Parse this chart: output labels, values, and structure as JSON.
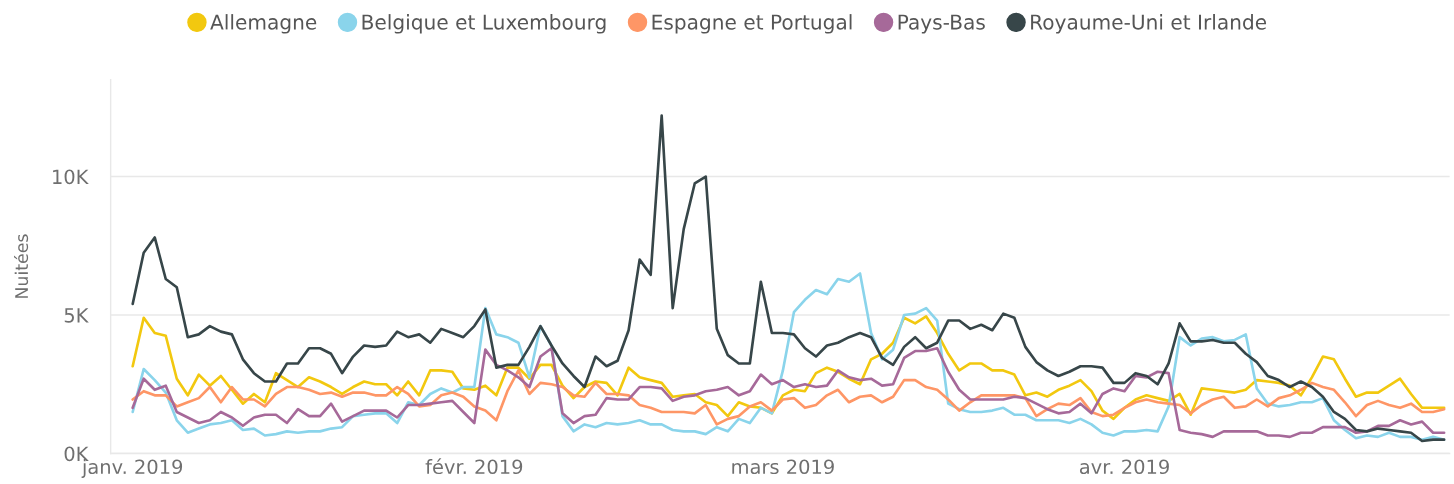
{
  "chart_data": {
    "type": "line",
    "ylabel": "Nuitées",
    "x": [
      "2019-01-01",
      "2019-01-02",
      "2019-01-03",
      "2019-01-04",
      "2019-01-05",
      "2019-01-06",
      "2019-01-07",
      "2019-01-08",
      "2019-01-09",
      "2019-01-10",
      "2019-01-11",
      "2019-01-12",
      "2019-01-13",
      "2019-01-14",
      "2019-01-15",
      "2019-01-16",
      "2019-01-17",
      "2019-01-18",
      "2019-01-19",
      "2019-01-20",
      "2019-01-21",
      "2019-01-22",
      "2019-01-23",
      "2019-01-24",
      "2019-01-25",
      "2019-01-26",
      "2019-01-27",
      "2019-01-28",
      "2019-01-29",
      "2019-01-30",
      "2019-01-31",
      "2019-02-01",
      "2019-02-02",
      "2019-02-03",
      "2019-02-04",
      "2019-02-05",
      "2019-02-06",
      "2019-02-07",
      "2019-02-08",
      "2019-02-09",
      "2019-02-10",
      "2019-02-11",
      "2019-02-12",
      "2019-02-13",
      "2019-02-14",
      "2019-02-15",
      "2019-02-16",
      "2019-02-17",
      "2019-02-18",
      "2019-02-19",
      "2019-02-20",
      "2019-02-21",
      "2019-02-22",
      "2019-02-23",
      "2019-02-24",
      "2019-02-25",
      "2019-02-26",
      "2019-02-27",
      "2019-02-28",
      "2019-03-01",
      "2019-03-02",
      "2019-03-03",
      "2019-03-04",
      "2019-03-05",
      "2019-03-06",
      "2019-03-07",
      "2019-03-08",
      "2019-03-09",
      "2019-03-10",
      "2019-03-11",
      "2019-03-12",
      "2019-03-13",
      "2019-03-14",
      "2019-03-15",
      "2019-03-16",
      "2019-03-17",
      "2019-03-18",
      "2019-03-19",
      "2019-03-20",
      "2019-03-21",
      "2019-03-22",
      "2019-03-23",
      "2019-03-24",
      "2019-03-25",
      "2019-03-26",
      "2019-03-27",
      "2019-03-28",
      "2019-03-29",
      "2019-03-30",
      "2019-03-31",
      "2019-04-01",
      "2019-04-02",
      "2019-04-03",
      "2019-04-04",
      "2019-04-05",
      "2019-04-06",
      "2019-04-07",
      "2019-04-08",
      "2019-04-09",
      "2019-04-10",
      "2019-04-11",
      "2019-04-12",
      "2019-04-13",
      "2019-04-14",
      "2019-04-15",
      "2019-04-16",
      "2019-04-17",
      "2019-04-18",
      "2019-04-19",
      "2019-04-20",
      "2019-04-21",
      "2019-04-22",
      "2019-04-23",
      "2019-04-24",
      "2019-04-25",
      "2019-04-26",
      "2019-04-27",
      "2019-04-28",
      "2019-04-29",
      "2019-04-30"
    ],
    "series": [
      {
        "name": "Allemagne",
        "color": "#f2c80f",
        "values": [
          3150,
          4900,
          4350,
          4250,
          2700,
          2100,
          2850,
          2450,
          2800,
          2300,
          1800,
          2150,
          1850,
          2900,
          2650,
          2400,
          2750,
          2600,
          2400,
          2150,
          2400,
          2600,
          2500,
          2500,
          2100,
          2600,
          2100,
          3000,
          3000,
          2950,
          2350,
          2300,
          2450,
          2100,
          3100,
          3100,
          2700,
          3200,
          3200,
          2450,
          2000,
          2400,
          2600,
          2550,
          2100,
          3100,
          2750,
          2650,
          2550,
          2050,
          2100,
          2150,
          1850,
          1750,
          1350,
          1850,
          1700,
          1650,
          1450,
          2100,
          2300,
          2250,
          2900,
          3100,
          2950,
          2700,
          2500,
          3400,
          3600,
          4000,
          4900,
          4700,
          4950,
          4350,
          3600,
          3000,
          3250,
          3250,
          3000,
          3000,
          2850,
          2100,
          2200,
          2050,
          2300,
          2450,
          2650,
          2250,
          1550,
          1250,
          1650,
          1950,
          2100,
          2000,
          1900,
          2150,
          1400,
          2350,
          2300,
          2250,
          2200,
          2300,
          2650,
          2600,
          2550,
          2450,
          2100,
          2750,
          3500,
          3400,
          2700,
          2050,
          2200,
          2200,
          2450,
          2700,
          2150,
          1650,
          1650,
          1650
        ]
      },
      {
        "name": "Belgique et Luxembourg",
        "color": "#8ad4eb",
        "values": [
          1500,
          3050,
          2650,
          2200,
          1200,
          750,
          900,
          1050,
          1100,
          1200,
          850,
          900,
          650,
          700,
          800,
          750,
          800,
          800,
          900,
          950,
          1350,
          1400,
          1450,
          1450,
          1100,
          1850,
          1750,
          2150,
          2350,
          2200,
          2400,
          2400,
          5250,
          4300,
          4200,
          4000,
          2750,
          4600,
          3900,
          1350,
          800,
          1050,
          950,
          1100,
          1050,
          1100,
          1200,
          1050,
          1050,
          850,
          800,
          800,
          700,
          950,
          800,
          1250,
          1100,
          1650,
          1450,
          3000,
          5100,
          5550,
          5900,
          5750,
          6300,
          6200,
          6500,
          4350,
          3400,
          3750,
          5000,
          5050,
          5250,
          4800,
          1800,
          1600,
          1500,
          1500,
          1550,
          1650,
          1400,
          1400,
          1200,
          1200,
          1200,
          1100,
          1250,
          1050,
          750,
          650,
          800,
          800,
          850,
          800,
          1700,
          4200,
          3900,
          4150,
          4200,
          4050,
          4100,
          4300,
          2350,
          1800,
          1700,
          1750,
          1850,
          1850,
          2000,
          1200,
          850,
          550,
          650,
          600,
          750,
          600,
          600,
          500,
          600,
          500
        ]
      },
      {
        "name": "Espagne et Portugal",
        "color": "#fe9666",
        "values": [
          1950,
          2250,
          2100,
          2100,
          1700,
          1850,
          2000,
          2400,
          1850,
          2400,
          1950,
          1950,
          1700,
          2150,
          2400,
          2400,
          2300,
          2150,
          2200,
          2050,
          2200,
          2200,
          2100,
          2100,
          2400,
          2150,
          1700,
          1750,
          2100,
          2200,
          2050,
          1700,
          1550,
          1200,
          2250,
          3000,
          2150,
          2550,
          2500,
          2400,
          2100,
          2050,
          2550,
          2150,
          2150,
          2100,
          1750,
          1650,
          1500,
          1500,
          1500,
          1450,
          1750,
          1050,
          1250,
          1350,
          1700,
          1850,
          1550,
          1950,
          2000,
          1650,
          1750,
          2100,
          2300,
          1850,
          2050,
          2100,
          1850,
          2050,
          2650,
          2650,
          2400,
          2300,
          1950,
          1550,
          1850,
          2100,
          2100,
          2100,
          2100,
          2000,
          1350,
          1600,
          1800,
          1750,
          2000,
          1500,
          1350,
          1400,
          1650,
          1850,
          1950,
          1850,
          1800,
          1750,
          1450,
          1750,
          1950,
          2050,
          1650,
          1700,
          1950,
          1700,
          2000,
          2100,
          2300,
          2550,
          2400,
          2300,
          1850,
          1350,
          1750,
          1900,
          1750,
          1650,
          1800,
          1500,
          1500,
          1600
        ]
      },
      {
        "name": "Pays-Bas",
        "color": "#a66999",
        "values": [
          1650,
          2700,
          2300,
          2450,
          1500,
          1300,
          1100,
          1200,
          1500,
          1300,
          1000,
          1300,
          1400,
          1400,
          1100,
          1600,
          1350,
          1350,
          1800,
          1150,
          1350,
          1550,
          1550,
          1550,
          1300,
          1750,
          1750,
          1800,
          1850,
          1900,
          1500,
          1100,
          3750,
          3200,
          3000,
          2750,
          2400,
          3500,
          3800,
          1450,
          1100,
          1350,
          1400,
          2000,
          1950,
          1950,
          2400,
          2400,
          2350,
          1900,
          2050,
          2100,
          2250,
          2300,
          2400,
          2100,
          2250,
          2850,
          2500,
          2650,
          2400,
          2500,
          2400,
          2450,
          3000,
          2750,
          2650,
          2700,
          2450,
          2500,
          3450,
          3700,
          3700,
          3800,
          2950,
          2300,
          1950,
          1950,
          1950,
          1950,
          2050,
          2000,
          1800,
          1600,
          1450,
          1500,
          1800,
          1450,
          2150,
          2350,
          2250,
          2800,
          2750,
          2950,
          2900,
          850,
          750,
          700,
          600,
          800,
          800,
          800,
          800,
          650,
          650,
          600,
          750,
          750,
          950,
          950,
          950,
          750,
          800,
          1000,
          1000,
          1200,
          1050,
          1150,
          750,
          750
        ]
      },
      {
        "name": "Royaume-Uni et Irlande",
        "color": "#374649",
        "values": [
          5400,
          7250,
          7800,
          6300,
          6000,
          4200,
          4300,
          4600,
          4400,
          4300,
          3400,
          2900,
          2600,
          2600,
          3250,
          3250,
          3800,
          3800,
          3600,
          2900,
          3500,
          3900,
          3850,
          3900,
          4400,
          4200,
          4300,
          4000,
          4500,
          4350,
          4200,
          4600,
          5200,
          3100,
          3200,
          3200,
          3850,
          4600,
          3900,
          3250,
          2800,
          2400,
          3500,
          3150,
          3350,
          4450,
          7000,
          6450,
          12200,
          5250,
          8100,
          9750,
          10000,
          4500,
          3550,
          3250,
          3250,
          6200,
          4350,
          4350,
          4300,
          3800,
          3500,
          3900,
          4000,
          4200,
          4350,
          4200,
          3450,
          3200,
          3850,
          4200,
          3800,
          4000,
          4800,
          4800,
          4500,
          4650,
          4450,
          5050,
          4900,
          3850,
          3300,
          3000,
          2800,
          2950,
          3150,
          3150,
          3100,
          2550,
          2550,
          2900,
          2800,
          2500,
          3250,
          4700,
          4050,
          4050,
          4100,
          4000,
          4000,
          3600,
          3300,
          2800,
          2650,
          2400,
          2600,
          2400,
          2050,
          1500,
          1250,
          850,
          800,
          900,
          850,
          800,
          750,
          450,
          500,
          500
        ]
      }
    ],
    "xlim": [
      "2018-12-30",
      "2019-04-30T12:00"
    ],
    "xticks": [
      {
        "value": "2019-01-01",
        "label": "janv. 2019"
      },
      {
        "value": "2019-02-01",
        "label": "févr. 2019"
      },
      {
        "value": "2019-03-01",
        "label": "mars 2019"
      },
      {
        "value": "2019-04-01",
        "label": "avr. 2019"
      }
    ],
    "ylim": [
      0,
      13500
    ],
    "yticks": [
      {
        "value": 0,
        "label": "0K"
      },
      {
        "value": 5000,
        "label": "5K"
      },
      {
        "value": 10000,
        "label": "10K"
      }
    ],
    "grid": "y",
    "legend": "top",
    "line_style": "solid"
  }
}
